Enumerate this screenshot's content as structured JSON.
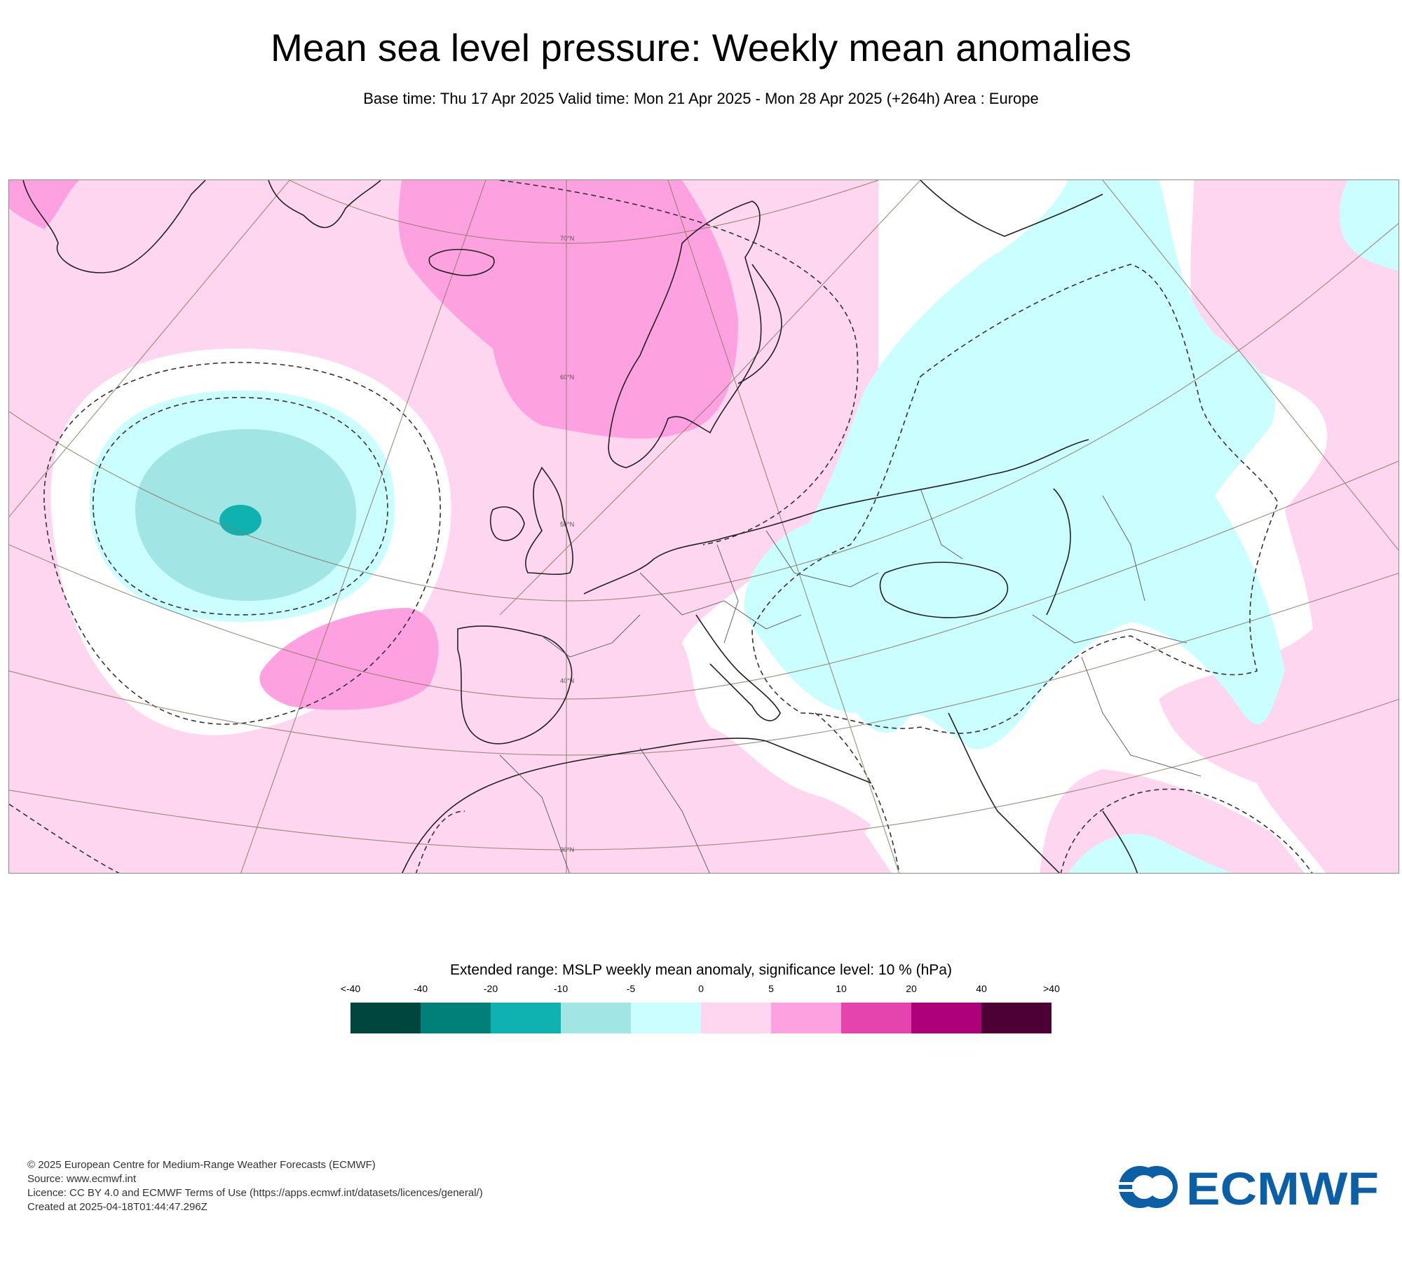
{
  "header": {
    "title": "Mean sea level pressure: Weekly mean anomalies",
    "subtitle": "Base time: Thu 17 Apr 2025 Valid time: Mon 21 Apr 2025 - Mon 28 Apr 2025 (+264h) Area : Europe"
  },
  "map": {
    "lat_labels": [
      "70°N",
      "60°N",
      "50°N",
      "40°N",
      "30°N"
    ]
  },
  "legend": {
    "title": "Extended range: MSLP weekly mean anomaly, significance level: 10 % (hPa)",
    "tick_labels": [
      "<-40",
      "-40",
      "-20",
      "-10",
      "-5",
      "0",
      "5",
      "10",
      "20",
      "40",
      ">40"
    ],
    "colors": [
      "#00463f",
      "#008079",
      "#10b2b1",
      "#a1e5e5",
      "#cbfefe",
      "#fed6f0",
      "#fea1e0",
      "#e543ae",
      "#ad0079",
      "#4c0034"
    ]
  },
  "footer": {
    "line1": "© 2025 European Centre for Medium-Range Weather Forecasts (ECMWF)",
    "line2": "Source: www.ecmwf.int",
    "line3": "Licence: CC BY 4.0 and ECMWF Terms of Use (https://apps.ecmwf.int/datasets/licences/general/)",
    "line4": "Created at 2025-04-18T01:44:47.296Z"
  },
  "logo": {
    "text": "ECMWF",
    "color": "#0a5fa6"
  }
}
